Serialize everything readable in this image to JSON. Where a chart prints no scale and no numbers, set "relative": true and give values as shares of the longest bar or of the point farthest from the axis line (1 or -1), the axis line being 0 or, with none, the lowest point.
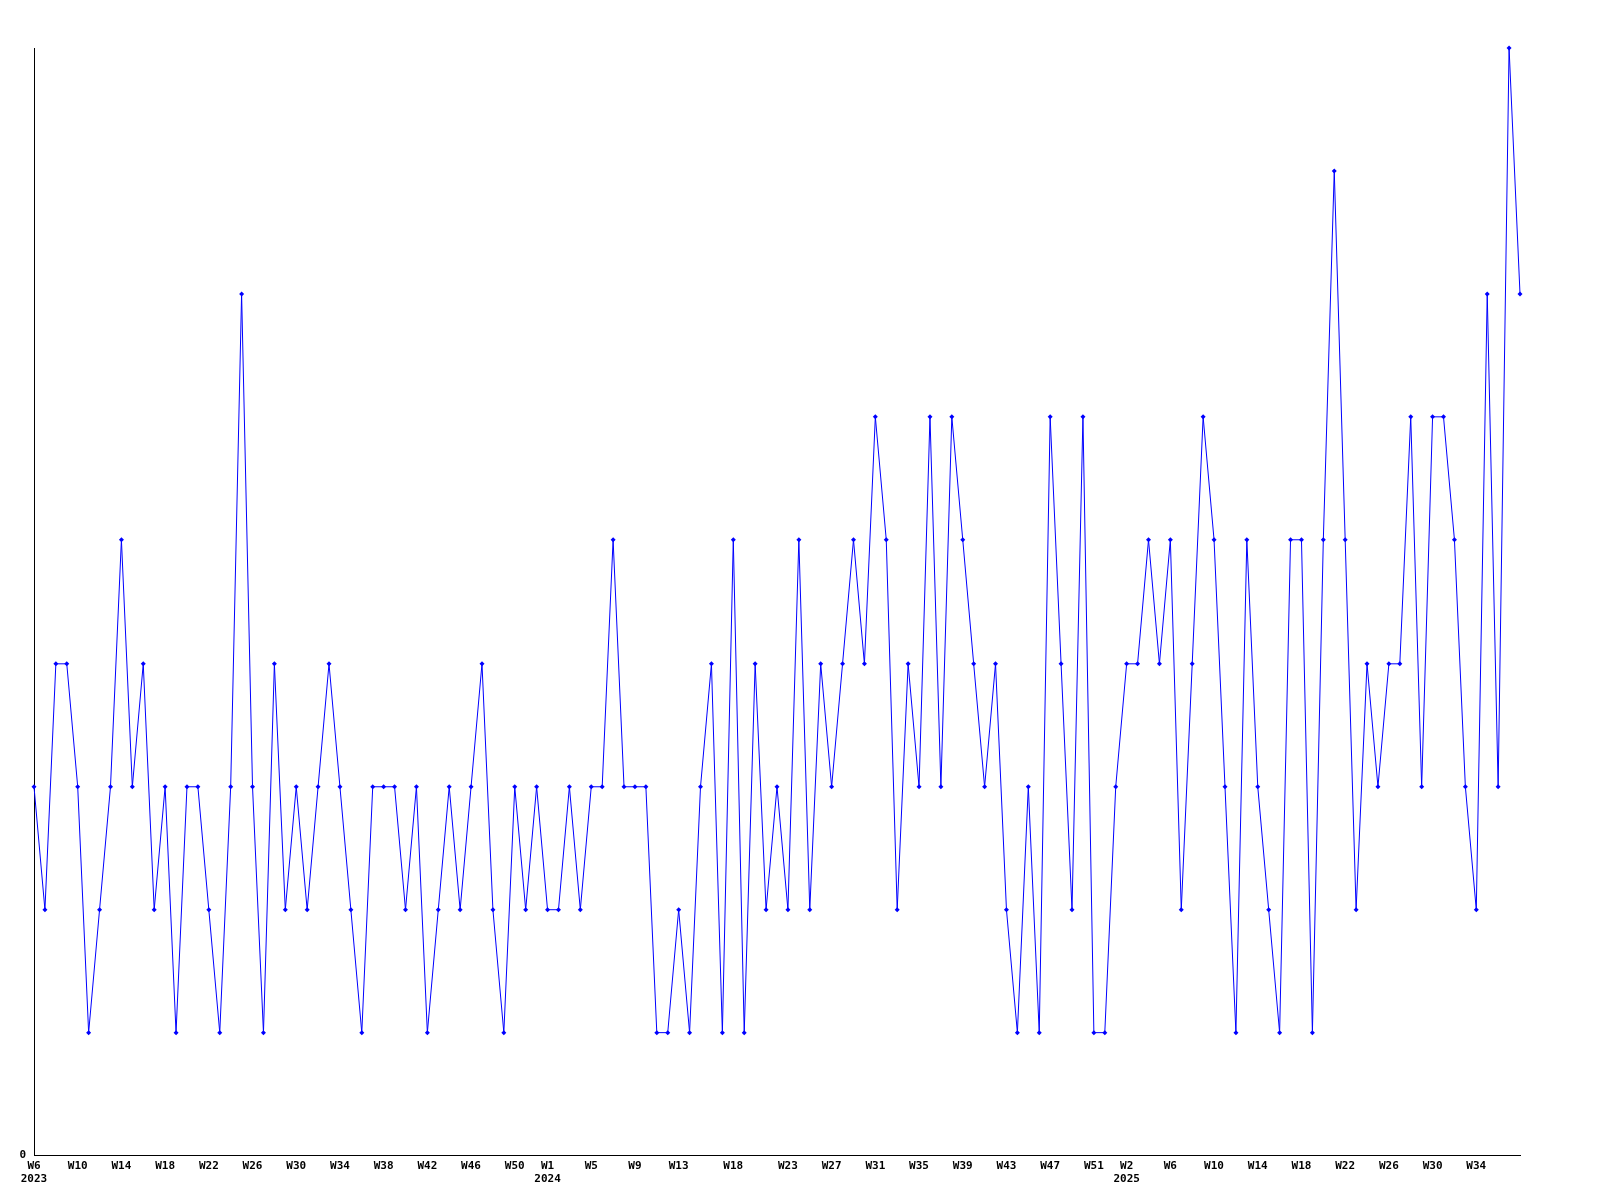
{
  "chart_data": {
    "type": "line",
    "relative": true,
    "color": "#0000ff",
    "marker": "diamond",
    "annotations": [
      "0"
    ],
    "categories": [
      "W6\n2023",
      null,
      null,
      null,
      "W10",
      null,
      null,
      null,
      "W14",
      null,
      null,
      null,
      "W18",
      null,
      null,
      null,
      "W22",
      null,
      null,
      null,
      "W26",
      null,
      null,
      null,
      "W30",
      null,
      null,
      null,
      "W34",
      null,
      null,
      null,
      "W38",
      null,
      null,
      null,
      "W42",
      null,
      null,
      null,
      "W46",
      null,
      null,
      null,
      "W50",
      null,
      null,
      "W1\n2024",
      null,
      null,
      null,
      "W5",
      null,
      null,
      null,
      "W9",
      null,
      null,
      null,
      "W13",
      null,
      null,
      null,
      null,
      "W18",
      null,
      null,
      null,
      null,
      "W23",
      null,
      null,
      null,
      "W27",
      null,
      null,
      null,
      "W31",
      null,
      null,
      null,
      "W35",
      null,
      null,
      null,
      "W39",
      null,
      null,
      null,
      "W43",
      null,
      null,
      null,
      "W47",
      null,
      null,
      null,
      "W51",
      null,
      null,
      "W2\n2025",
      null,
      null,
      null,
      "W6",
      null,
      null,
      null,
      "W10",
      null,
      null,
      null,
      "W14",
      null,
      null,
      null,
      "W18",
      null,
      null,
      null,
      "W22",
      null,
      null,
      null,
      "W26",
      null,
      null,
      null,
      "W30",
      null,
      null,
      null,
      "W34",
      null,
      null,
      null,
      null
    ],
    "values": [
      0.333,
      0.222,
      0.444,
      0.444,
      0.333,
      0.111,
      0.222,
      0.333,
      0.556,
      0.333,
      0.444,
      0.222,
      0.333,
      0.111,
      0.333,
      0.333,
      0.222,
      0.111,
      0.333,
      0.778,
      0.333,
      0.111,
      0.444,
      0.222,
      0.333,
      0.222,
      0.333,
      0.444,
      0.333,
      0.222,
      0.111,
      0.333,
      0.333,
      0.333,
      0.222,
      0.333,
      0.111,
      0.222,
      0.333,
      0.222,
      0.333,
      0.444,
      0.222,
      0.111,
      0.333,
      0.222,
      0.333,
      0.222,
      0.222,
      0.333,
      0.222,
      0.333,
      0.333,
      0.556,
      0.333,
      0.333,
      0.333,
      0.111,
      0.111,
      0.222,
      0.111,
      0.333,
      0.444,
      0.111,
      0.556,
      0.111,
      0.444,
      0.222,
      0.333,
      0.222,
      0.556,
      0.222,
      0.444,
      0.333,
      0.444,
      0.556,
      0.444,
      0.667,
      0.556,
      0.222,
      0.444,
      0.333,
      0.667,
      0.333,
      0.667,
      0.556,
      0.444,
      0.333,
      0.444,
      0.222,
      0.111,
      0.333,
      0.111,
      0.667,
      0.444,
      0.222,
      0.667,
      0.111,
      0.111,
      0.333,
      0.444,
      0.444,
      0.556,
      0.444,
      0.556,
      0.222,
      0.444,
      0.667,
      0.556,
      0.333,
      0.111,
      0.556,
      0.333,
      0.222,
      0.111,
      0.556,
      0.556,
      0.111,
      0.556,
      0.889,
      0.556,
      0.222,
      0.444,
      0.333,
      0.444,
      0.444,
      0.667,
      0.333,
      0.667,
      0.667,
      0.556,
      0.333,
      0.222,
      0.778,
      0.333,
      1,
      0.778
    ]
  }
}
